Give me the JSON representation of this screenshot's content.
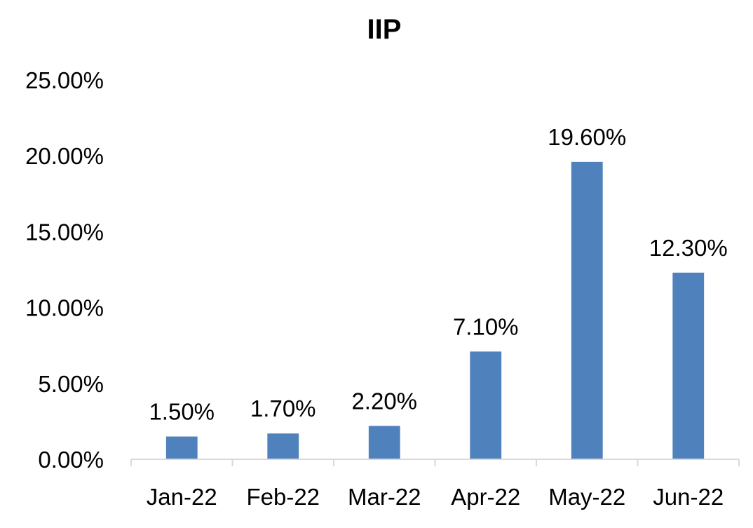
{
  "chart_data": {
    "type": "bar",
    "title": "IIP",
    "xlabel": "",
    "ylabel": "",
    "categories": [
      "Jan-22",
      "Feb-22",
      "Mar-22",
      "Apr-22",
      "May-22",
      "Jun-22"
    ],
    "values": [
      1.5,
      1.7,
      2.2,
      7.1,
      19.6,
      12.3
    ],
    "data_labels": [
      "1.50%",
      "1.70%",
      "2.20%",
      "7.10%",
      "19.60%",
      "12.30%"
    ],
    "ylim": [
      0,
      25
    ],
    "yticks": [
      0,
      5,
      10,
      15,
      20,
      25
    ],
    "ytick_labels": [
      "0.00%",
      "5.00%",
      "10.00%",
      "15.00%",
      "20.00%",
      "25.00%"
    ],
    "grid": false,
    "legend": "none",
    "bar_color": "#4F81BD",
    "axis_color": "#D9D9D9"
  }
}
